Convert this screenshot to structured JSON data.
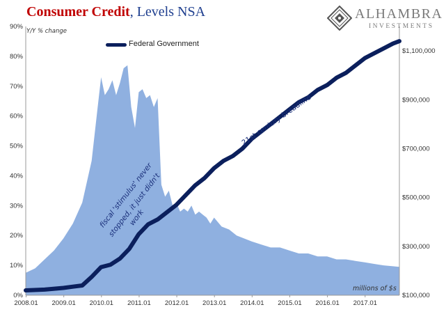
{
  "header": {
    "title_main": "Consumer Credit",
    "title_rest": ", Levels NSA"
  },
  "logo": {
    "name": "ALHAMBRA",
    "subtitle": "INVESTMENTS",
    "icon": "alhambra-diamond-logo"
  },
  "annotations": {
    "left_unit": "Y/Y % change",
    "right_unit": "millions of $s",
    "breadline": "21st century breadline",
    "stimulus_lines": [
      "fiscal 'stimulus' never",
      "stopped, it just didn't",
      "work"
    ]
  },
  "colors": {
    "area": "#8fb0e0",
    "line": "#0b1f5c",
    "text": "#333333"
  },
  "chart_data": {
    "type": "area+line",
    "title": "Consumer Credit, Levels NSA",
    "legend": {
      "entries": [
        "Federal Government"
      ],
      "placement": "top-left"
    },
    "grid": false,
    "x_axis": {
      "range": [
        "2008.01",
        "2017.12"
      ],
      "tick_labels": [
        "2008.01",
        "2009.01",
        "2010.01",
        "2011.01",
        "2012.01",
        "2013.01",
        "2014.01",
        "2015.01",
        "2016.01",
        "2017.01"
      ]
    },
    "y_left": {
      "label": "Y/Y % change",
      "ylim": [
        0,
        90
      ],
      "tick_labels": [
        "0%",
        "10%",
        "20%",
        "30%",
        "40%",
        "50%",
        "60%",
        "70%",
        "80%",
        "90%"
      ]
    },
    "y_right": {
      "label": "millions of $s",
      "ylim": [
        100000,
        1200000
      ],
      "tick_values": [
        100000,
        300000,
        500000,
        700000,
        900000,
        1100000
      ],
      "tick_labels": [
        "$100,000",
        "$300,000",
        "$500,000",
        "$700,000",
        "$900,000",
        "$1,100,000"
      ]
    },
    "series": [
      {
        "kind": "area",
        "axis": "left",
        "x": [
          2008.0,
          2008.25,
          2008.5,
          2008.75,
          2009.0,
          2009.25,
          2009.5,
          2009.75,
          2009.9,
          2010.0,
          2010.1,
          2010.2,
          2010.3,
          2010.4,
          2010.5,
          2010.6,
          2010.7,
          2010.8,
          2010.9,
          2011.0,
          2011.1,
          2011.2,
          2011.3,
          2011.4,
          2011.5,
          2011.6,
          2011.7,
          2011.8,
          2011.9,
          2012.0,
          2012.1,
          2012.2,
          2012.3,
          2012.4,
          2012.5,
          2012.6,
          2012.7,
          2012.8,
          2012.9,
          2013.0,
          2013.2,
          2013.4,
          2013.6,
          2013.8,
          2014.0,
          2014.25,
          2014.5,
          2014.75,
          2015.0,
          2015.25,
          2015.5,
          2015.75,
          2016.0,
          2016.25,
          2016.5,
          2016.75,
          2017.0,
          2017.25,
          2017.5,
          2017.75,
          2017.92
        ],
        "values": [
          7.5,
          9,
          12,
          15,
          19,
          24,
          31,
          45,
          62,
          73,
          67,
          69,
          72,
          67,
          71,
          76,
          77,
          63,
          56,
          68,
          69,
          66,
          67,
          63,
          66,
          37,
          33,
          35,
          30,
          31,
          28,
          29,
          28,
          30,
          27,
          28,
          27,
          26,
          24,
          26,
          23,
          22,
          20,
          19,
          18,
          17,
          16,
          16,
          15,
          14,
          14,
          13,
          13,
          12,
          12,
          11.5,
          11,
          10.5,
          10,
          9.7,
          9.5
        ]
      },
      {
        "name": "Federal Government",
        "kind": "line",
        "axis": "right",
        "x": [
          2008.0,
          2008.5,
          2009.0,
          2009.25,
          2009.5,
          2009.75,
          2010.0,
          2010.25,
          2010.5,
          2010.75,
          2011.0,
          2011.25,
          2011.5,
          2011.75,
          2012.0,
          2012.25,
          2012.5,
          2012.75,
          2013.0,
          2013.25,
          2013.5,
          2013.75,
          2014.0,
          2014.25,
          2014.5,
          2014.75,
          2015.0,
          2015.25,
          2015.5,
          2015.75,
          2016.0,
          2016.25,
          2016.5,
          2016.75,
          2017.0,
          2017.25,
          2017.5,
          2017.75,
          2017.92
        ],
        "values": [
          120000,
          123000,
          130000,
          135000,
          140000,
          175000,
          215000,
          225000,
          250000,
          290000,
          350000,
          390000,
          410000,
          440000,
          470000,
          510000,
          550000,
          580000,
          620000,
          650000,
          670000,
          700000,
          740000,
          770000,
          800000,
          830000,
          860000,
          890000,
          910000,
          940000,
          960000,
          990000,
          1010000,
          1040000,
          1070000,
          1090000,
          1110000,
          1130000,
          1140000
        ]
      }
    ]
  }
}
